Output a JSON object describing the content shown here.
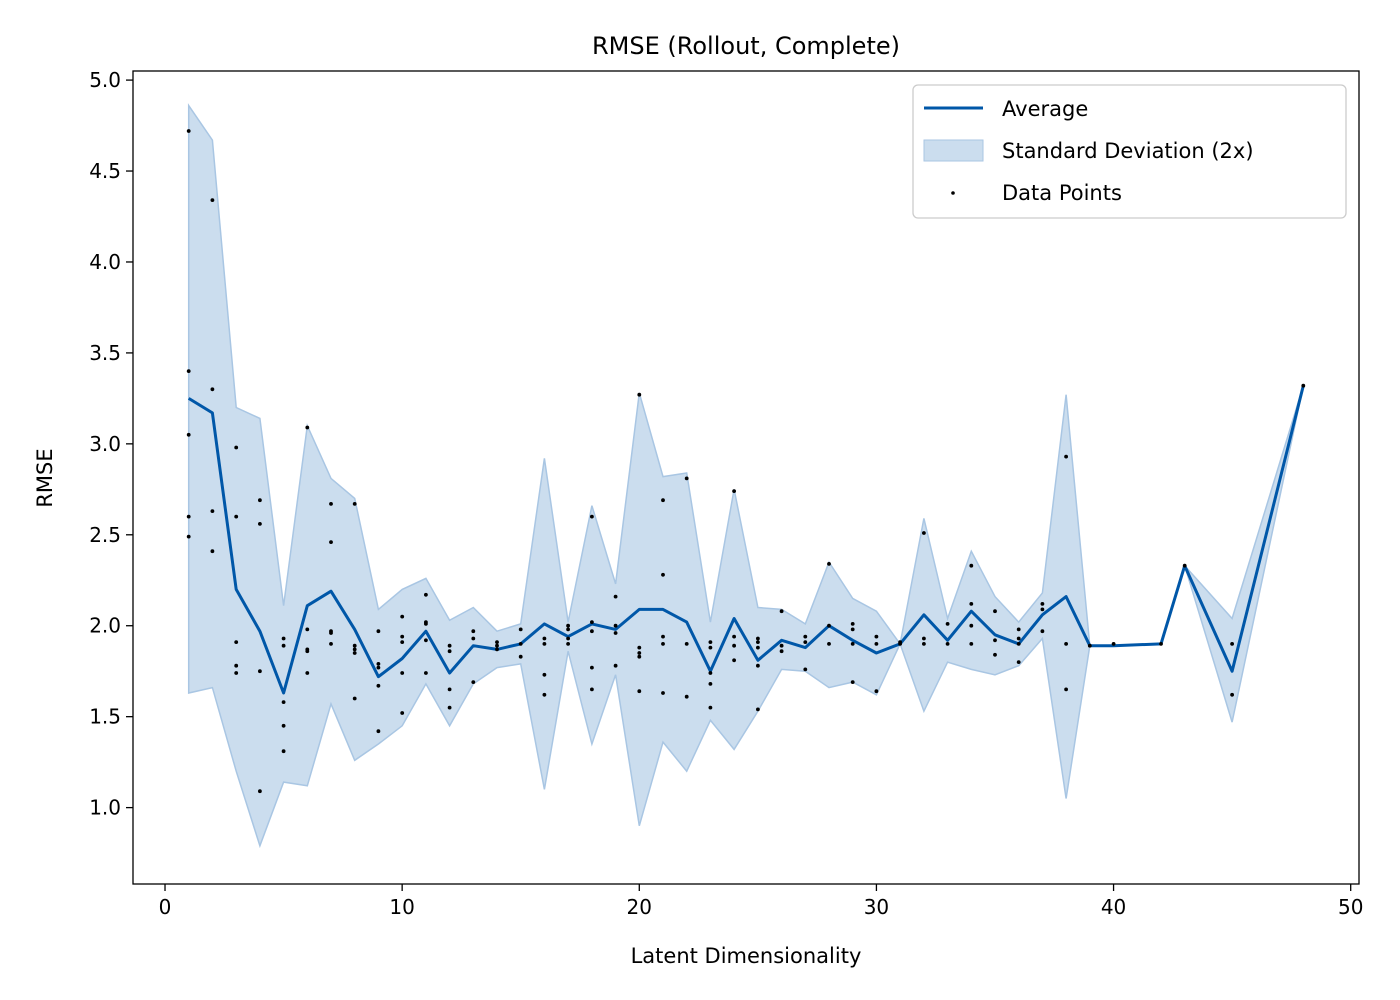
{
  "chart_data": {
    "type": "line",
    "title": "RMSE (Rollout, Complete)",
    "xlabel": "Latent Dimensionality",
    "ylabel": "RMSE",
    "xlim": [
      -1.35,
      50.35
    ],
    "ylim": [
      0.58,
      5.05
    ],
    "xticks": [
      0,
      10,
      20,
      30,
      40,
      50
    ],
    "yticks": [
      1.0,
      1.5,
      2.0,
      2.5,
      3.0,
      3.5,
      4.0,
      4.5,
      5.0
    ],
    "ytick_labels": [
      "1.0",
      "1.5",
      "2.0",
      "2.5",
      "3.0",
      "3.5",
      "4.0",
      "4.5",
      "5.0"
    ],
    "grid": false,
    "legend_position": "top-right",
    "colors": {
      "line": "#0057a8",
      "band": "#a9c6e3",
      "points": "#000000"
    },
    "legend": [
      {
        "label": "Average",
        "kind": "line"
      },
      {
        "label": "Standard Deviation (2x)",
        "kind": "band"
      },
      {
        "label": "Data Points",
        "kind": "point"
      }
    ],
    "series": [
      {
        "name": "Average",
        "x": [
          1,
          2,
          3,
          4,
          5,
          6,
          7,
          8,
          9,
          10,
          11,
          12,
          13,
          14,
          15,
          16,
          17,
          18,
          19,
          20,
          21,
          22,
          23,
          24,
          25,
          26,
          27,
          28,
          29,
          30,
          31,
          32,
          33,
          34,
          35,
          36,
          37,
          38,
          39,
          40,
          42,
          43,
          45,
          48
        ],
        "y": [
          3.25,
          3.17,
          2.2,
          1.97,
          1.63,
          2.11,
          2.19,
          1.98,
          1.72,
          1.82,
          1.97,
          1.74,
          1.89,
          1.87,
          1.9,
          2.01,
          1.94,
          2.01,
          1.98,
          2.09,
          2.09,
          2.02,
          1.75,
          2.04,
          1.81,
          1.92,
          1.88,
          2.0,
          1.92,
          1.85,
          1.9,
          2.06,
          1.92,
          2.08,
          1.95,
          1.9,
          2.06,
          2.16,
          1.89,
          1.89,
          1.9,
          2.33,
          1.75,
          3.32
        ]
      },
      {
        "name": "Standard Deviation (2x)",
        "x": [
          1,
          2,
          3,
          4,
          5,
          6,
          7,
          8,
          9,
          10,
          11,
          12,
          13,
          14,
          15,
          16,
          17,
          18,
          19,
          20,
          21,
          22,
          23,
          24,
          25,
          26,
          27,
          28,
          29,
          30,
          31,
          32,
          33,
          34,
          35,
          36,
          37,
          38,
          39,
          40,
          42,
          43,
          45,
          48
        ],
        "upper": [
          4.86,
          4.67,
          3.2,
          3.14,
          2.11,
          3.1,
          2.81,
          2.7,
          2.09,
          2.2,
          2.26,
          2.03,
          2.1,
          1.97,
          2.01,
          2.92,
          2.02,
          2.66,
          2.23,
          3.28,
          2.82,
          2.84,
          2.02,
          2.75,
          2.1,
          2.09,
          2.01,
          2.35,
          2.15,
          2.08,
          1.9,
          2.59,
          2.04,
          2.41,
          2.16,
          2.02,
          2.18,
          3.27,
          1.89,
          1.89,
          1.9,
          2.33,
          2.04,
          3.32
        ],
        "lower": [
          1.63,
          1.66,
          1.2,
          0.79,
          1.14,
          1.12,
          1.57,
          1.26,
          1.35,
          1.45,
          1.68,
          1.45,
          1.68,
          1.77,
          1.79,
          1.1,
          1.86,
          1.35,
          1.73,
          0.9,
          1.36,
          1.2,
          1.48,
          1.32,
          1.53,
          1.76,
          1.75,
          1.66,
          1.69,
          1.62,
          1.9,
          1.53,
          1.8,
          1.76,
          1.73,
          1.78,
          1.93,
          1.05,
          1.89,
          1.89,
          1.9,
          2.33,
          1.47,
          3.32
        ]
      },
      {
        "name": "Data Points",
        "points": [
          [
            1,
            4.72
          ],
          [
            1,
            3.4
          ],
          [
            1,
            3.05
          ],
          [
            1,
            2.6
          ],
          [
            1,
            2.49
          ],
          [
            2,
            4.34
          ],
          [
            2,
            3.3
          ],
          [
            2,
            2.63
          ],
          [
            2,
            2.41
          ],
          [
            3,
            2.98
          ],
          [
            3,
            2.6
          ],
          [
            3,
            1.91
          ],
          [
            3,
            1.78
          ],
          [
            3,
            1.74
          ],
          [
            4,
            2.69
          ],
          [
            4,
            2.56
          ],
          [
            4,
            1.75
          ],
          [
            4,
            1.09
          ],
          [
            5,
            1.93
          ],
          [
            5,
            1.89
          ],
          [
            5,
            1.58
          ],
          [
            5,
            1.45
          ],
          [
            5,
            1.31
          ],
          [
            6,
            3.09
          ],
          [
            6,
            1.98
          ],
          [
            6,
            1.87
          ],
          [
            6,
            1.86
          ],
          [
            6,
            1.74
          ],
          [
            7,
            2.67
          ],
          [
            7,
            2.46
          ],
          [
            7,
            1.97
          ],
          [
            7,
            1.96
          ],
          [
            7,
            1.9
          ],
          [
            8,
            2.67
          ],
          [
            8,
            1.89
          ],
          [
            8,
            1.87
          ],
          [
            8,
            1.85
          ],
          [
            8,
            1.6
          ],
          [
            9,
            1.97
          ],
          [
            9,
            1.79
          ],
          [
            9,
            1.77
          ],
          [
            9,
            1.67
          ],
          [
            9,
            1.42
          ],
          [
            10,
            2.05
          ],
          [
            10,
            1.94
          ],
          [
            10,
            1.91
          ],
          [
            10,
            1.74
          ],
          [
            10,
            1.52
          ],
          [
            11,
            2.17
          ],
          [
            11,
            2.02
          ],
          [
            11,
            2.01
          ],
          [
            11,
            1.92
          ],
          [
            11,
            1.74
          ],
          [
            12,
            1.89
          ],
          [
            12,
            1.86
          ],
          [
            12,
            1.65
          ],
          [
            12,
            1.55
          ],
          [
            13,
            1.97
          ],
          [
            13,
            1.93
          ],
          [
            13,
            1.69
          ],
          [
            14,
            1.91
          ],
          [
            14,
            1.89
          ],
          [
            14,
            1.87
          ],
          [
            15,
            1.98
          ],
          [
            15,
            1.9
          ],
          [
            15,
            1.83
          ],
          [
            16,
            1.93
          ],
          [
            16,
            1.9
          ],
          [
            16,
            1.73
          ],
          [
            16,
            1.62
          ],
          [
            17,
            2.0
          ],
          [
            17,
            1.98
          ],
          [
            17,
            1.93
          ],
          [
            17,
            1.9
          ],
          [
            18,
            2.6
          ],
          [
            18,
            2.02
          ],
          [
            18,
            1.97
          ],
          [
            18,
            1.77
          ],
          [
            18,
            1.65
          ],
          [
            19,
            2.16
          ],
          [
            19,
            2.0
          ],
          [
            19,
            1.96
          ],
          [
            19,
            1.78
          ],
          [
            20,
            3.27
          ],
          [
            20,
            1.88
          ],
          [
            20,
            1.85
          ],
          [
            20,
            1.83
          ],
          [
            20,
            1.64
          ],
          [
            21,
            2.69
          ],
          [
            21,
            2.28
          ],
          [
            21,
            1.94
          ],
          [
            21,
            1.9
          ],
          [
            21,
            1.63
          ],
          [
            22,
            2.81
          ],
          [
            22,
            1.9
          ],
          [
            22,
            1.61
          ],
          [
            23,
            1.91
          ],
          [
            23,
            1.88
          ],
          [
            23,
            1.74
          ],
          [
            23,
            1.68
          ],
          [
            23,
            1.55
          ],
          [
            24,
            2.74
          ],
          [
            24,
            1.94
          ],
          [
            24,
            1.89
          ],
          [
            24,
            1.81
          ],
          [
            25,
            1.93
          ],
          [
            25,
            1.91
          ],
          [
            25,
            1.88
          ],
          [
            25,
            1.78
          ],
          [
            25,
            1.54
          ],
          [
            26,
            2.08
          ],
          [
            26,
            1.89
          ],
          [
            26,
            1.86
          ],
          [
            27,
            1.94
          ],
          [
            27,
            1.91
          ],
          [
            27,
            1.76
          ],
          [
            28,
            2.34
          ],
          [
            28,
            2.0
          ],
          [
            28,
            1.9
          ],
          [
            29,
            2.01
          ],
          [
            29,
            1.98
          ],
          [
            29,
            1.9
          ],
          [
            29,
            1.69
          ],
          [
            30,
            1.94
          ],
          [
            30,
            1.9
          ],
          [
            30,
            1.64
          ],
          [
            31,
            1.91
          ],
          [
            31,
            1.9
          ],
          [
            32,
            2.51
          ],
          [
            32,
            1.93
          ],
          [
            32,
            1.9
          ],
          [
            33,
            2.01
          ],
          [
            33,
            1.9
          ],
          [
            34,
            2.33
          ],
          [
            34,
            2.12
          ],
          [
            34,
            2.0
          ],
          [
            34,
            1.9
          ],
          [
            35,
            2.08
          ],
          [
            35,
            1.92
          ],
          [
            35,
            1.84
          ],
          [
            36,
            1.98
          ],
          [
            36,
            1.93
          ],
          [
            36,
            1.9
          ],
          [
            36,
            1.8
          ],
          [
            37,
            2.12
          ],
          [
            37,
            2.09
          ],
          [
            37,
            1.97
          ],
          [
            38,
            2.93
          ],
          [
            38,
            1.9
          ],
          [
            38,
            1.65
          ],
          [
            39,
            1.89
          ],
          [
            40,
            1.9
          ],
          [
            42,
            1.9
          ],
          [
            43,
            2.33
          ],
          [
            45,
            1.9
          ],
          [
            45,
            1.62
          ],
          [
            48,
            3.32
          ]
        ]
      }
    ]
  }
}
